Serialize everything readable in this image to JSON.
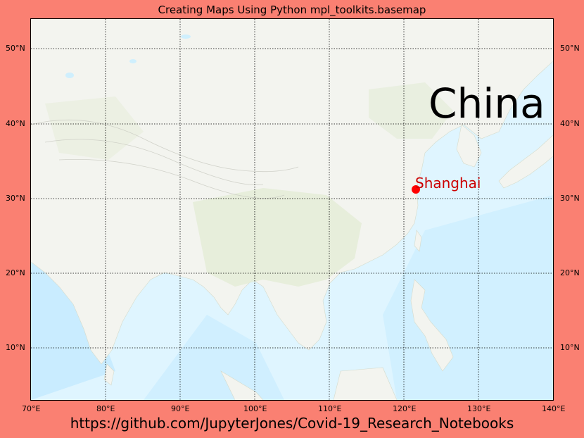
{
  "title": "Creating Maps Using Python mpl_toolkits.basemap",
  "credit": "https://github.com/JupyterJones/Covid-19_Research_Notebooks",
  "map": {
    "country_label": "China",
    "city": {
      "name": "Shanghai",
      "lon": 121.5,
      "lat": 31.2
    },
    "bounds": {
      "lon_min": 70,
      "lon_max": 140,
      "lat_min": 3,
      "lat_max": 54
    },
    "lon_ticks": [
      "70°E",
      "80°E",
      "90°E",
      "100°E",
      "110°E",
      "120°E",
      "130°E",
      "140°E"
    ],
    "lat_ticks": [
      "10°N",
      "20°N",
      "30°N",
      "40°N",
      "50°N"
    ],
    "colors": {
      "background": "#fa8072",
      "marker": "#ff0000",
      "city_text": "#cc0000",
      "ocean": "#d9f2ff",
      "land": "#f1f4ee"
    }
  }
}
